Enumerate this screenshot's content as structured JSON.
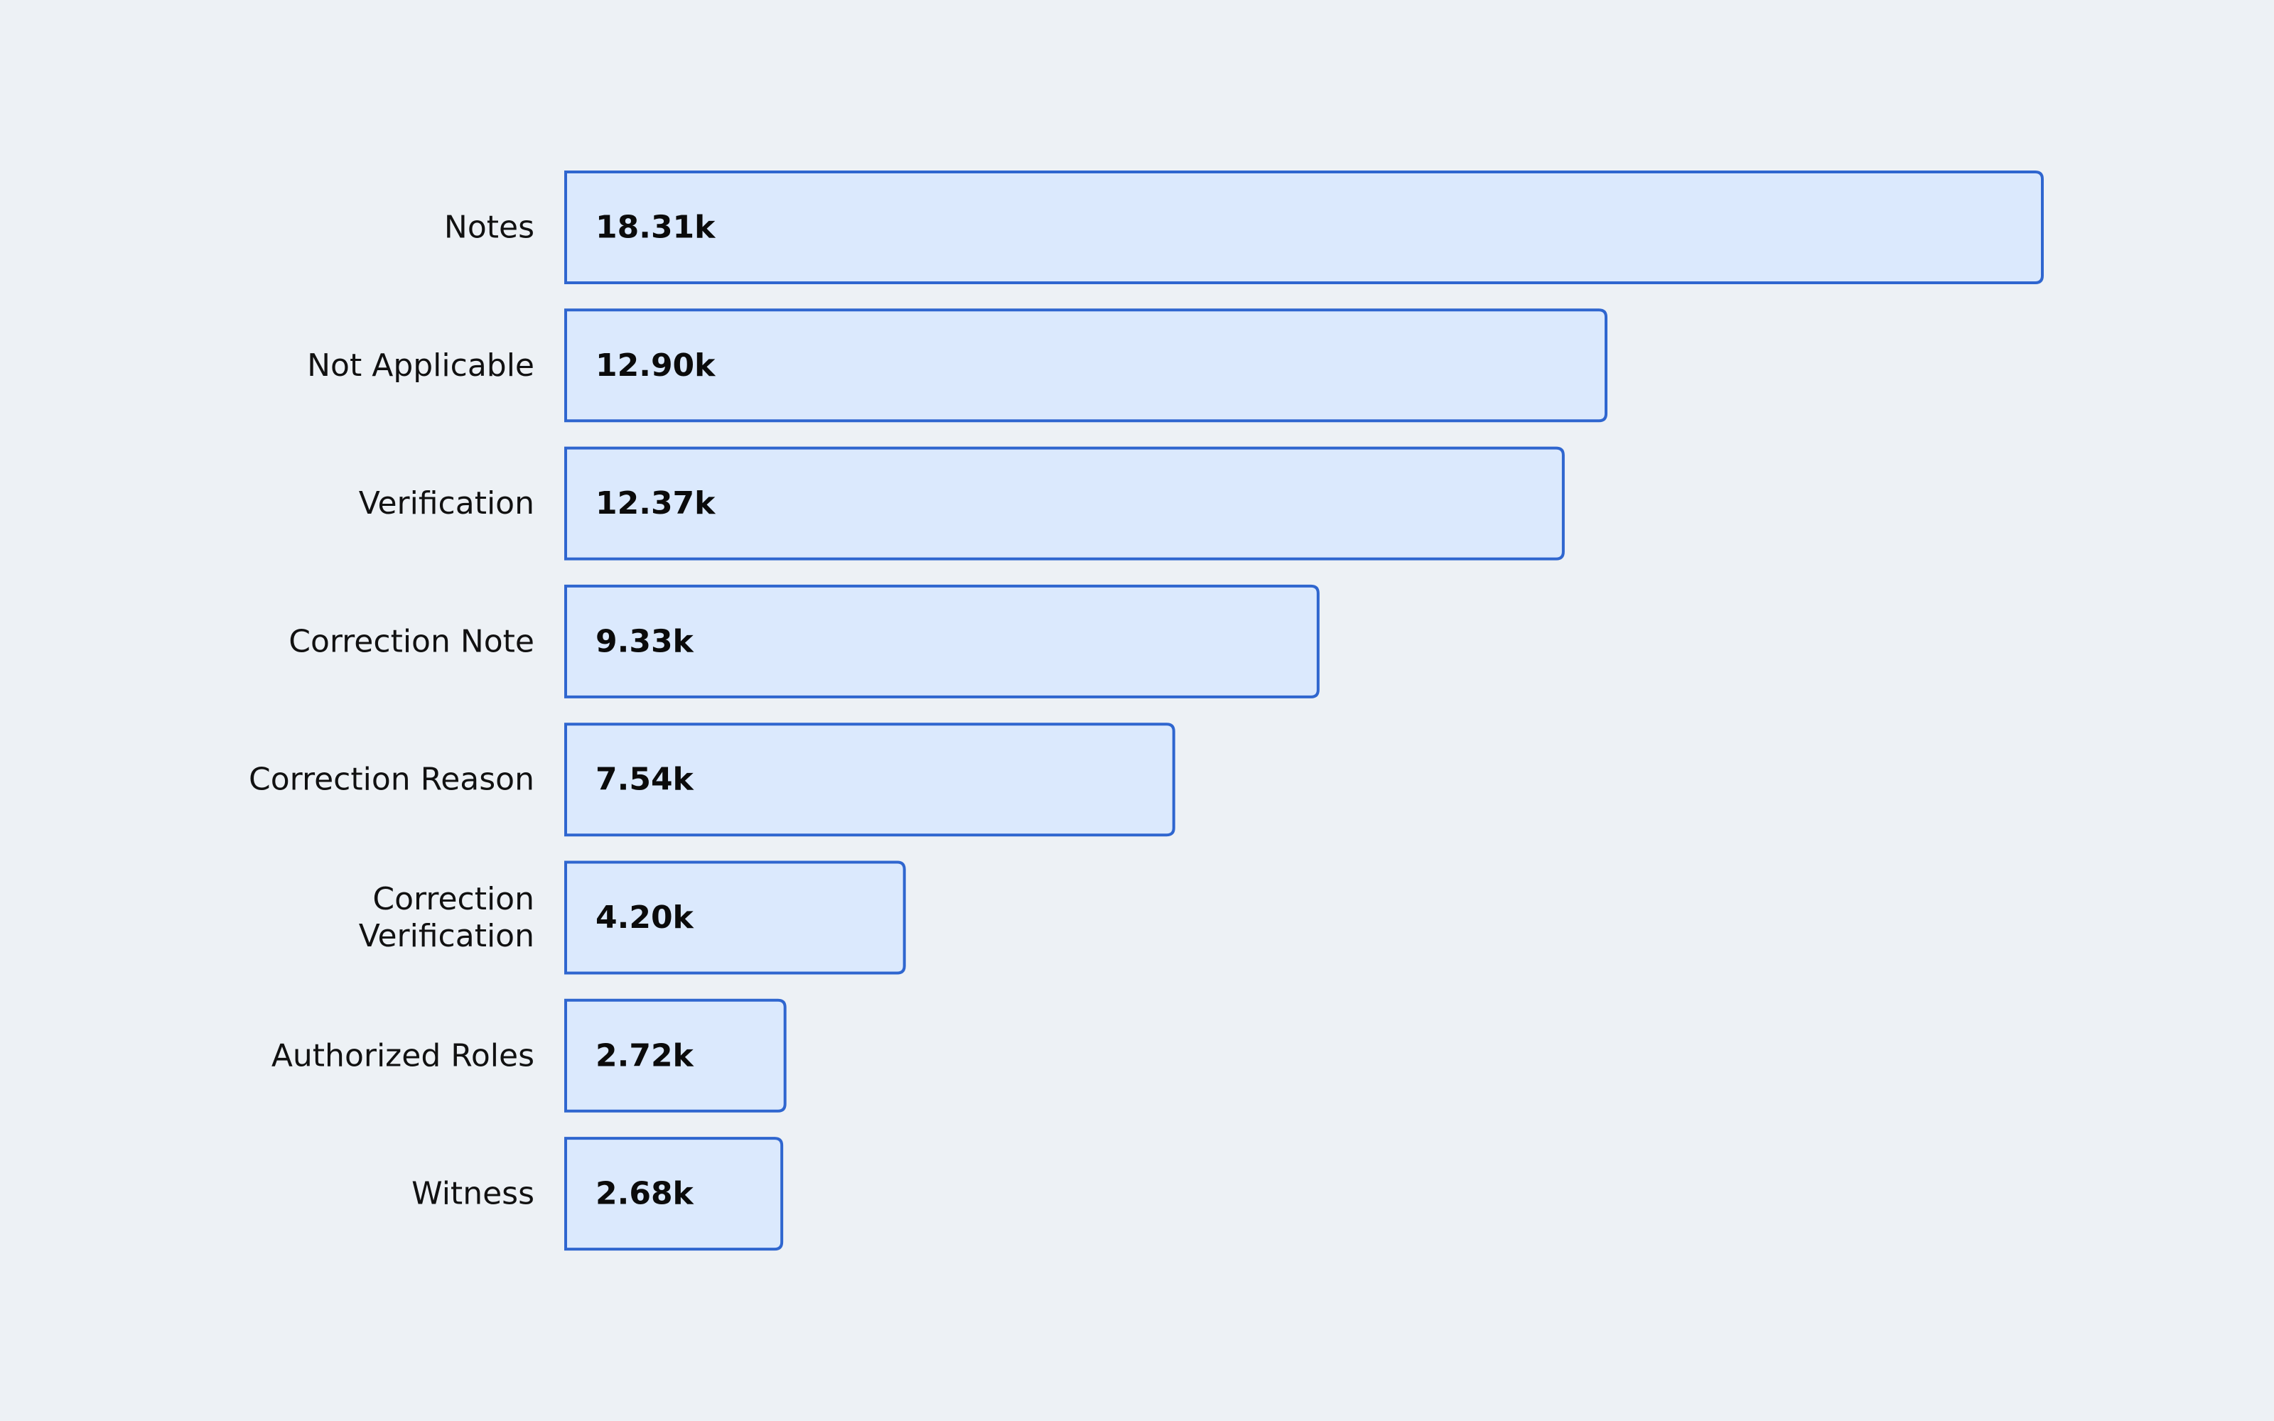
{
  "chart_data": {
    "type": "bar",
    "orientation": "horizontal",
    "title": "",
    "xlabel": "",
    "ylabel": "",
    "categories": [
      "Notes",
      "Not Applicable",
      "Verification",
      "Correction Note",
      "Correction Reason",
      "Correction Verification",
      "Authorized Roles",
      "Witness"
    ],
    "category_lines": [
      [
        "Notes"
      ],
      [
        "Not Applicable"
      ],
      [
        "Verification"
      ],
      [
        "Correction Note"
      ],
      [
        "Correction Reason"
      ],
      [
        "Correction",
        "Verification"
      ],
      [
        "Authorized Roles"
      ],
      [
        "Witness"
      ]
    ],
    "values": [
      18310,
      12900,
      12370,
      9330,
      7540,
      4200,
      2720,
      2680
    ],
    "value_labels": [
      "18.31k",
      "12.90k",
      "12.37k",
      "9.33k",
      "7.54k",
      "4.20k",
      "2.72k",
      "2.68k"
    ],
    "xlim": [
      0,
      18310
    ],
    "grid": false,
    "legend": "none",
    "colors": {
      "background": "#edf1f5",
      "bar_fill": "#dbe9fd",
      "bar_stroke": "#2f66cf",
      "category_text": "#111111",
      "value_text": "#0b0b0b"
    }
  }
}
